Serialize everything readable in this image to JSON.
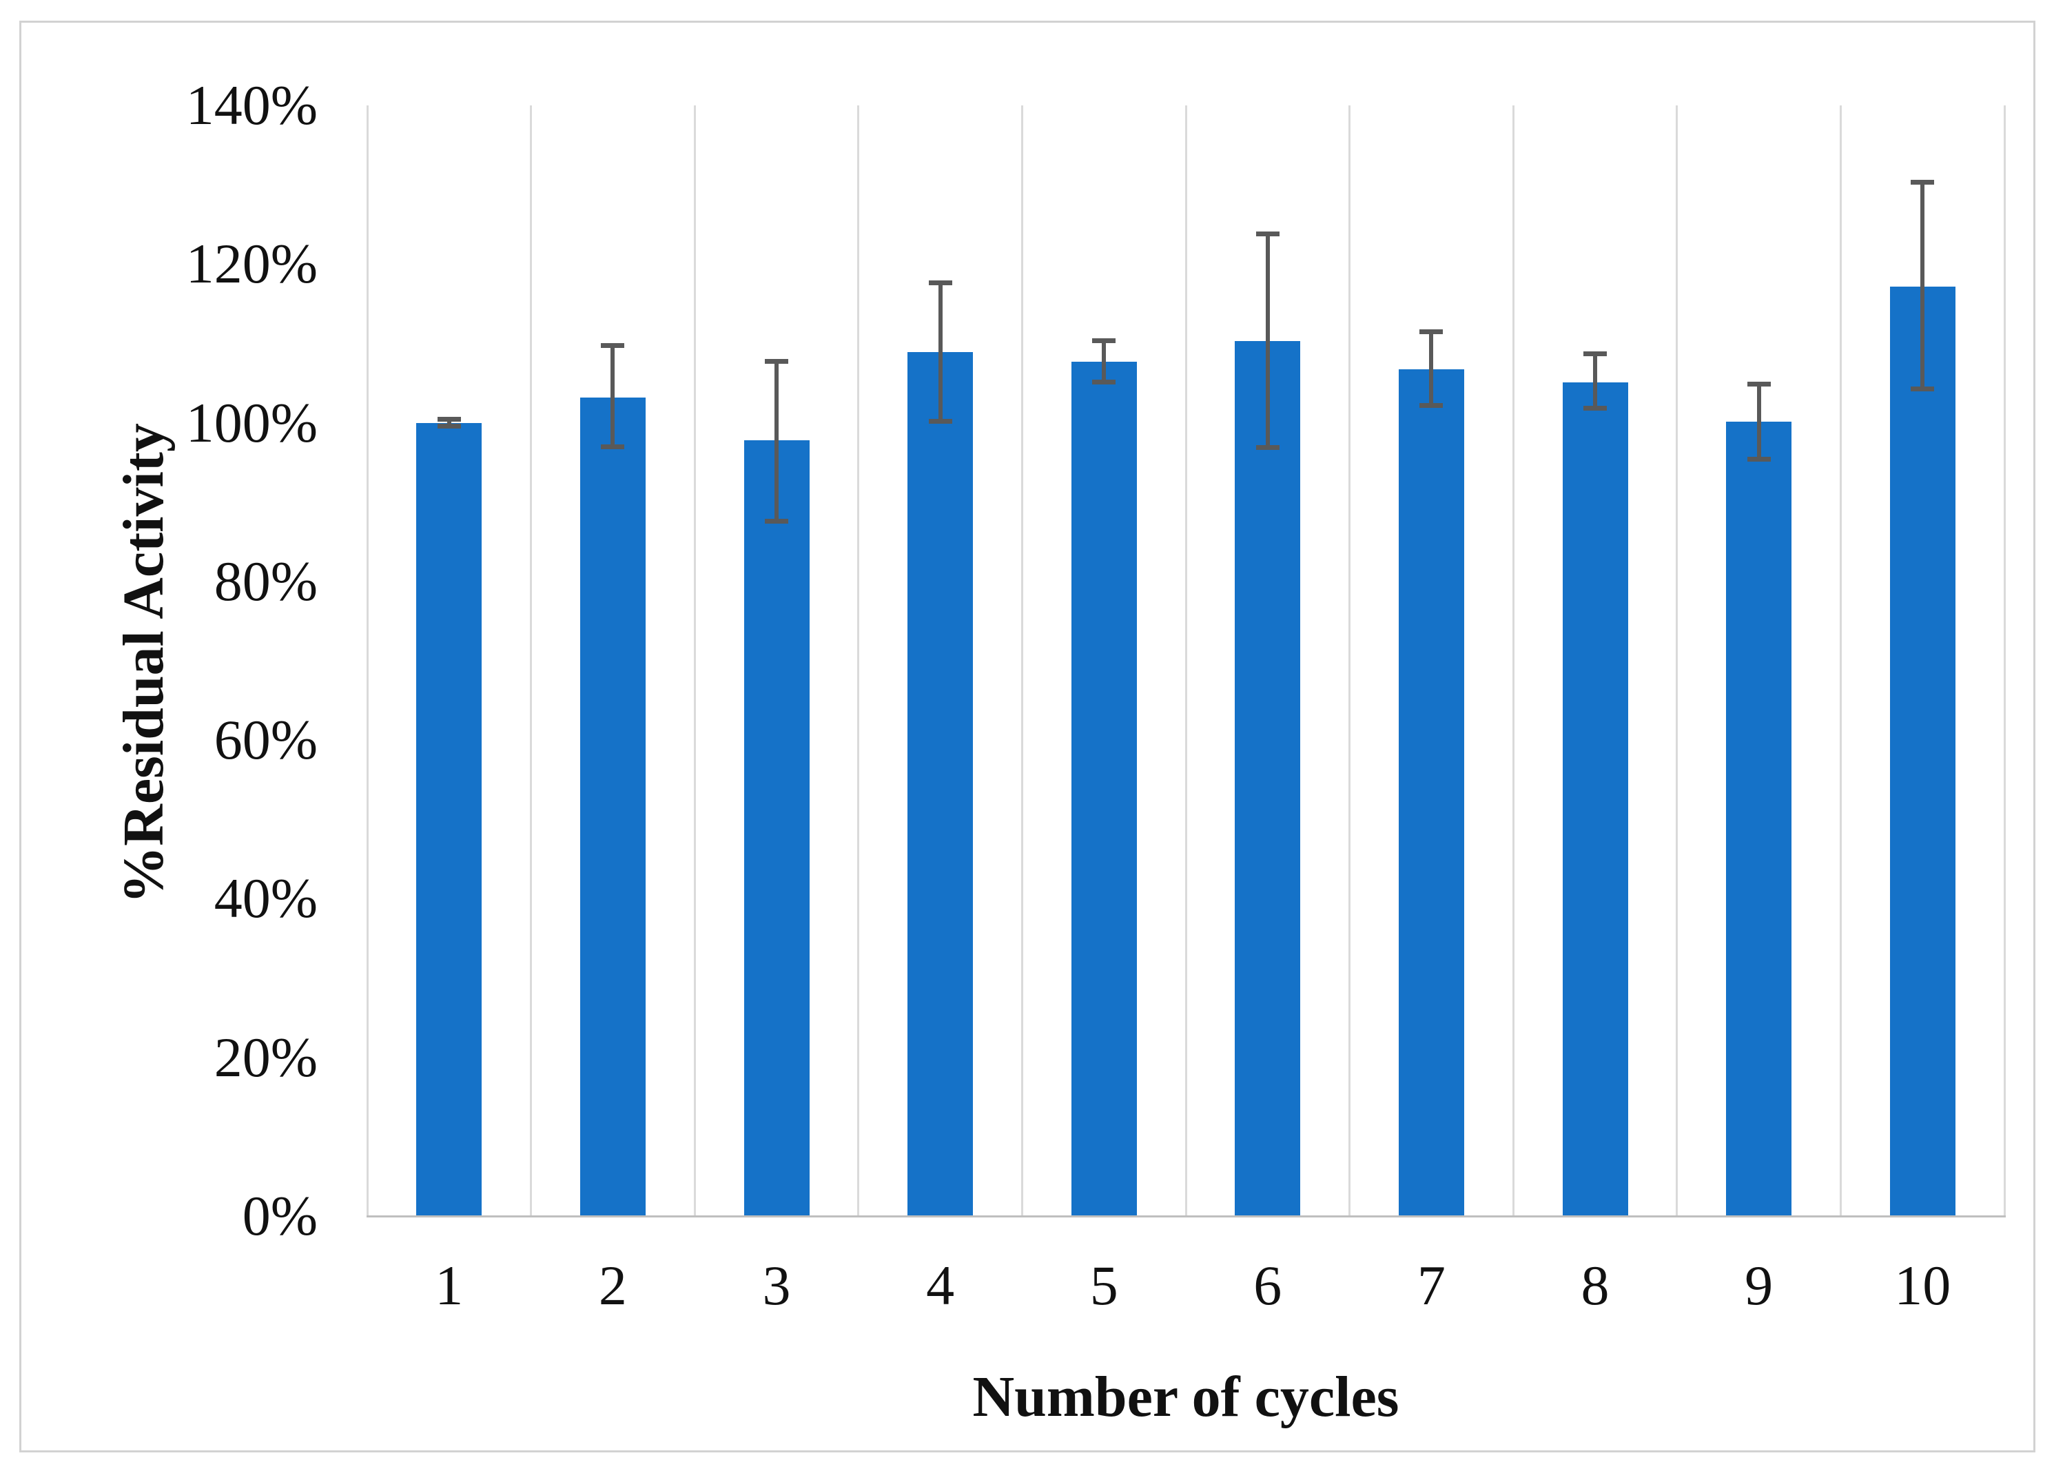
{
  "chart_data": {
    "type": "bar",
    "title": "",
    "xlabel": "Number of cycles",
    "ylabel": "%Residual Activity",
    "categories": [
      "1",
      "2",
      "3",
      "4",
      "5",
      "6",
      "7",
      "8",
      "9",
      "10"
    ],
    "values": [
      100.0,
      103.2,
      97.8,
      108.9,
      107.7,
      110.3,
      106.7,
      105.1,
      100.1,
      117.2
    ],
    "error_high": [
      100.4,
      109.7,
      107.7,
      117.6,
      110.3,
      123.8,
      111.5,
      108.7,
      104.9,
      130.3
    ],
    "error_low": [
      99.6,
      97.0,
      87.6,
      100.2,
      105.1,
      96.9,
      102.2,
      101.8,
      95.4,
      104.3
    ],
    "y_ticks": [
      "140%",
      "120%",
      "100%",
      "80%",
      "60%",
      "40%",
      "20%",
      "0%"
    ],
    "y_tick_values": [
      140,
      120,
      100,
      80,
      60,
      40,
      20,
      0
    ],
    "ylim": [
      0,
      140
    ],
    "grid": "vertical-category-separators",
    "legend_position": "none",
    "bar_color": "#1572c8",
    "error_bar_color": "#595959",
    "gridline_color": "#dadada",
    "axis_line_color": "#bfbfbf",
    "text_color": "#111111"
  }
}
